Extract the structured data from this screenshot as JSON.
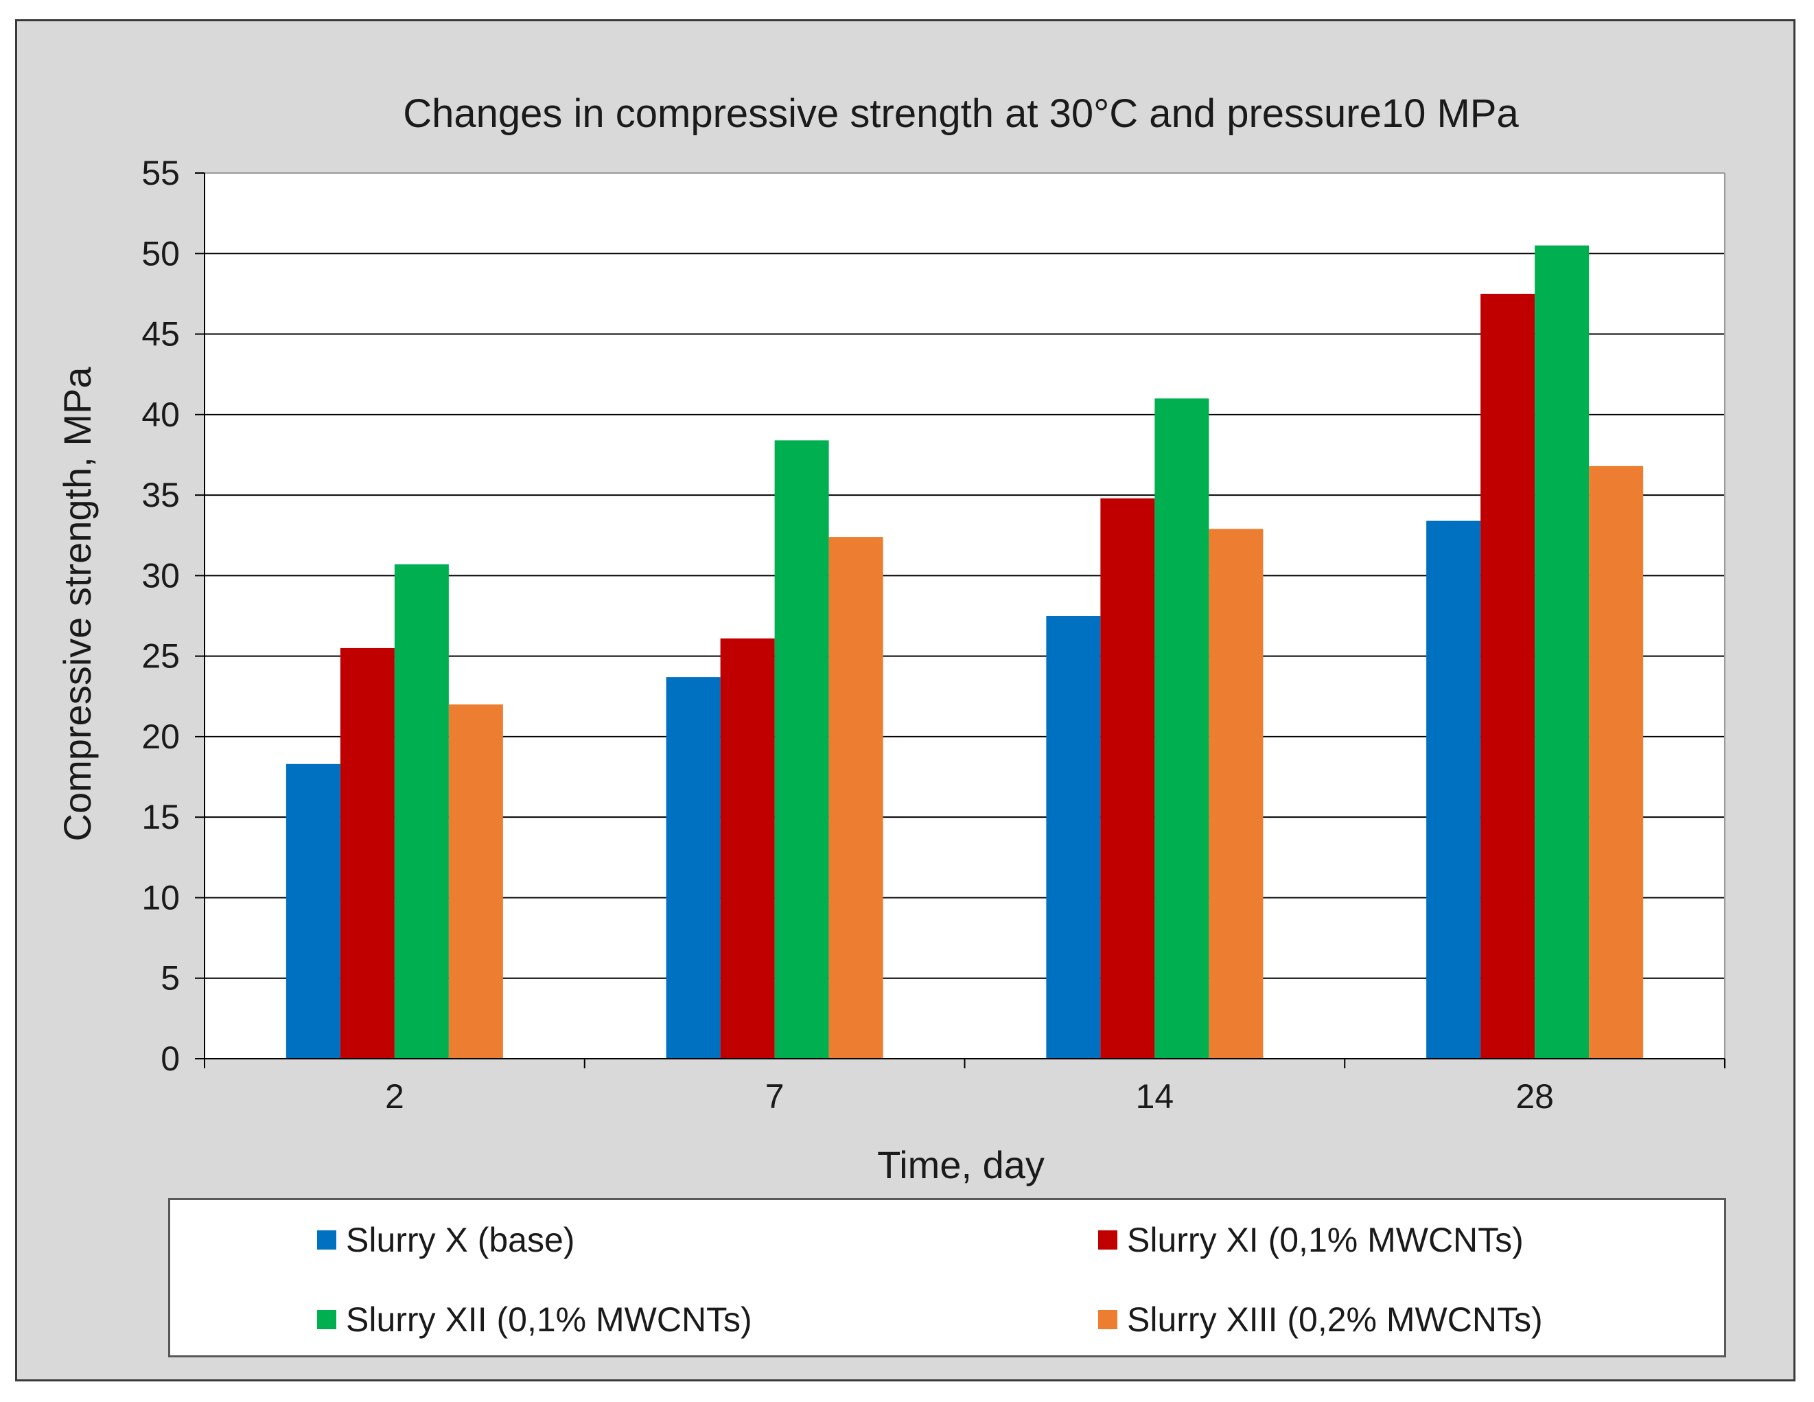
{
  "chart_data": {
    "type": "bar",
    "title": "Changes in compressive strength at 30°C and pressure10 MPa",
    "xlabel": "Time, day",
    "ylabel": "Compressive strength, MPa",
    "categories": [
      "2",
      "7",
      "14",
      "28"
    ],
    "ylim": [
      0,
      55
    ],
    "yticks": [
      0,
      5,
      10,
      15,
      20,
      25,
      30,
      35,
      40,
      45,
      50,
      55
    ],
    "grid": true,
    "legend_position": "bottom",
    "series": [
      {
        "name": "Slurry X (base)",
        "color": "#0070c0",
        "values": [
          18.3,
          23.7,
          27.5,
          33.4
        ]
      },
      {
        "name": "Slurry XI (0,1% MWCNTs)",
        "color": "#c00000",
        "values": [
          25.5,
          26.1,
          34.8,
          47.5
        ]
      },
      {
        "name": "Slurry XII (0,1% MWCNTs)",
        "color": "#00b050",
        "values": [
          30.7,
          38.4,
          41.0,
          50.5
        ]
      },
      {
        "name": "Slurry XIII (0,2% MWCNTs)",
        "color": "#ed7d31",
        "values": [
          22.0,
          32.4,
          32.9,
          36.8
        ]
      }
    ]
  }
}
